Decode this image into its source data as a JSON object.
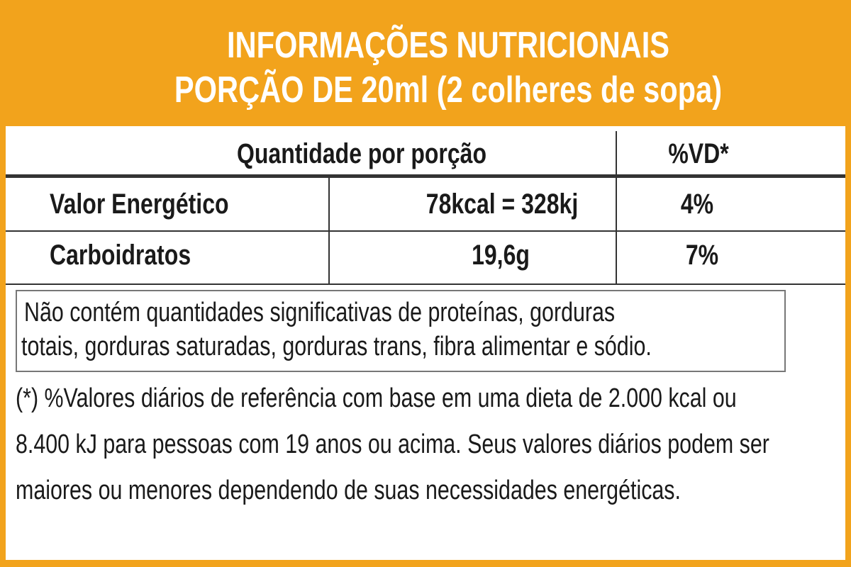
{
  "header": {
    "title": "INFORMAÇÕES NUTRICIONAIS",
    "subtitle": "PORÇÃO DE 20ml (2 colheres de sopa)"
  },
  "table": {
    "header": [
      "Quantidade por porção",
      "%VD*"
    ],
    "rows": [
      [
        "Valor Energético",
        "78kcal = 328kj",
        "4%"
      ],
      [
        "Carboidratos",
        "19,6g",
        "7%"
      ]
    ]
  },
  "note": {
    "lines": [
      "Não contém quantidades significativas de proteínas, gorduras",
      "totais, gorduras saturadas, gorduras trans, fibra alimentar e sódio."
    ]
  },
  "footnote": {
    "lines": [
      "(*) %Valores diários de referência com base em uma dieta de 2.000 kcal ou",
      "8.400 kJ para pessoas com 19 anos ou acima. Seus valores diários podem ser",
      "maiores ou menores dependendo de suas necessidades energéticas."
    ]
  }
}
